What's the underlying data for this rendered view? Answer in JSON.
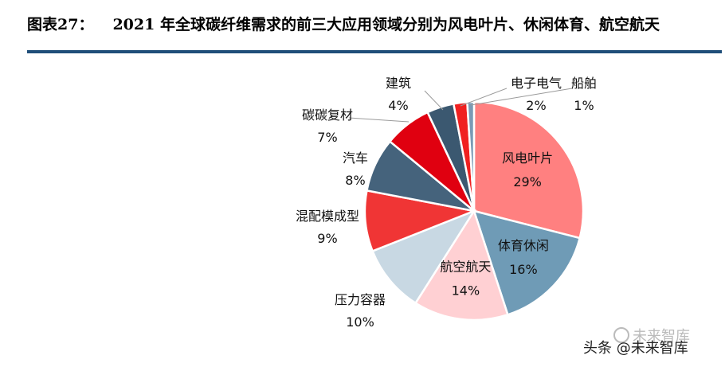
{
  "figure_label": "图表27：",
  "chart_data": {
    "type": "pie",
    "title": "2021 年全球碳纤维需求的前三大应用领域分别为风电叶片、休闲体育、航空航天",
    "unit": "%",
    "slices": [
      {
        "label": "风电叶片",
        "value": 29,
        "value_label": "29%",
        "color": "#ff8080"
      },
      {
        "label": "体育休闲",
        "value": 16,
        "value_label": "16%",
        "color": "#6f9bb6"
      },
      {
        "label": "航空航天",
        "value": 14,
        "value_label": "14%",
        "color": "#ffd0d3"
      },
      {
        "label": "压力容器",
        "value": 10,
        "value_label": "10%",
        "color": "#c8d8e3"
      },
      {
        "label": "混配模成型",
        "value": 9,
        "value_label": "9%",
        "color": "#f03535"
      },
      {
        "label": "汽车",
        "value": 8,
        "value_label": "8%",
        "color": "#45637c"
      },
      {
        "label": "碳碳复材",
        "value": 7,
        "value_label": "7%",
        "color": "#e00010"
      },
      {
        "label": "建筑",
        "value": 4,
        "value_label": "4%",
        "color": "#3b5870"
      },
      {
        "label": "电子电气",
        "value": 2,
        "value_label": "2%",
        "color": "#f02020"
      },
      {
        "label": "船舶",
        "value": 1,
        "value_label": "1%",
        "color": "#7a9ab5"
      }
    ]
  },
  "watermark": {
    "main": "头条 @未来智库",
    "ghost": "未来智库"
  }
}
